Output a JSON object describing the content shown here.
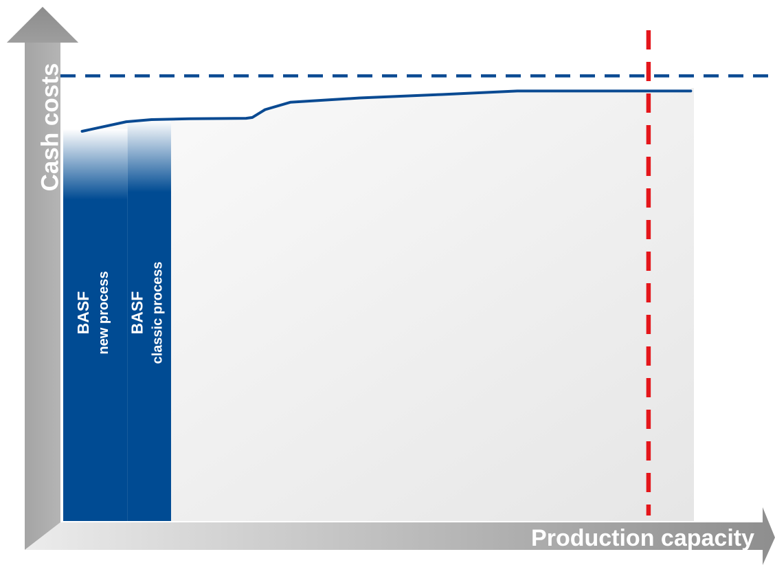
{
  "chart_data": {
    "type": "area",
    "title": "",
    "xlabel": "Production capacity",
    "ylabel": "Cash costs",
    "grid": false,
    "curve_color": "#0a4a92",
    "bar_color": "#004b93",
    "demand_line_color": "#e4161b",
    "price_line_color": "#0a4a92",
    "segments": [
      {
        "name_lines": [
          "BASF",
          "new process"
        ],
        "x_start": 0,
        "x_end": 0.102
      },
      {
        "name_lines": [
          "BASF",
          "classic process"
        ],
        "x_start": 0.102,
        "x_end": 0.171
      }
    ],
    "cost_curve": {
      "x": [
        0.03,
        0.1,
        0.14,
        0.2,
        0.29,
        0.3,
        0.32,
        0.36,
        0.47,
        0.6,
        0.72,
        0.8,
        0.89,
        0.995
      ],
      "y": [
        0.9,
        0.922,
        0.927,
        0.929,
        0.93,
        0.932,
        0.95,
        0.967,
        0.977,
        0.985,
        0.993,
        0.993,
        0.993,
        0.993
      ]
    },
    "cost_curve_area_top": 1.0,
    "demand_x": 0.928,
    "price_level_y": 1.028
  }
}
